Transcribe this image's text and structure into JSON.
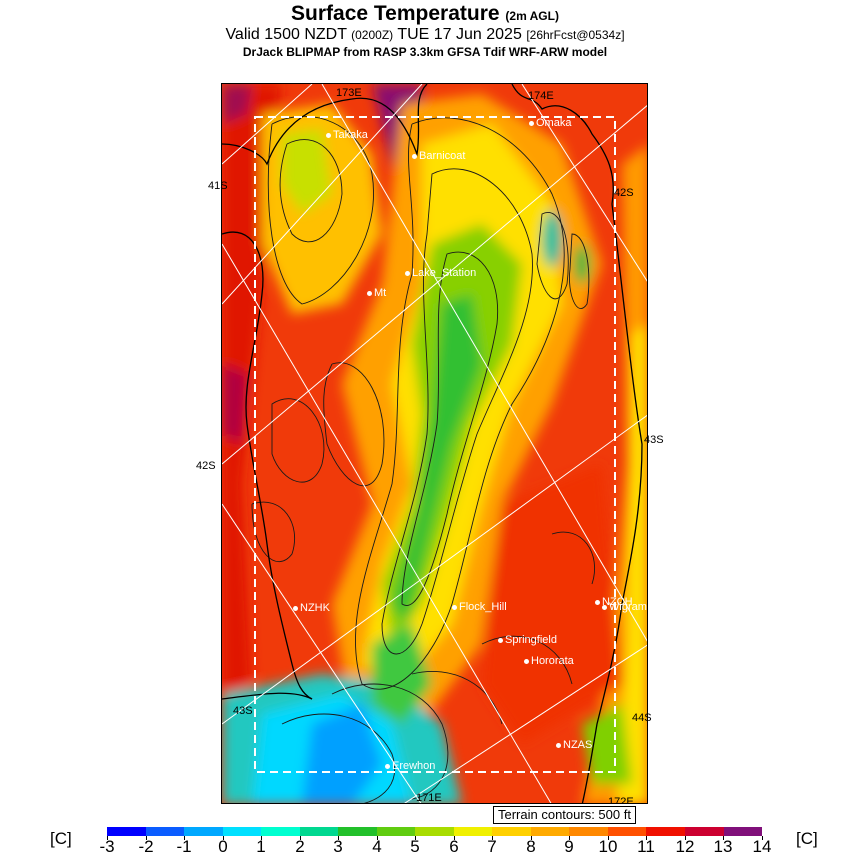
{
  "header": {
    "title": "Surface Temperature",
    "title_unit": "(2m AGL)",
    "valid_prefix": "Valid 1500 NZDT",
    "valid_zulu": "(0200Z)",
    "valid_date": "TUE 17 Jun 2025",
    "forecast": "[26hrFcst@0534z]",
    "model": "DrJack BLIPMAP from RASP 3.3km GFSA Tdif WRF-ARW model"
  },
  "map": {
    "lon_labels": [
      "173E",
      "174E",
      "171E",
      "172E"
    ],
    "lat_labels": [
      "41S",
      "42S",
      "42S",
      "43S",
      "43S",
      "44S"
    ],
    "towns": [
      "Takaka",
      "Barnicoat",
      "Omaka",
      "Lake_Station",
      "Mt",
      "NZHK",
      "Flock_Hill",
      "NZCH",
      "Wigram",
      "Springfield",
      "Hororata",
      "NZAS",
      "Erewhon"
    ],
    "terrain_note": "Terrain contours: 500 ft"
  },
  "legend": {
    "unit_left": "[C]",
    "unit_right": "[C]",
    "ticks": [
      "-3",
      "-2",
      "-1",
      "0",
      "1",
      "2",
      "3",
      "4",
      "5",
      "6",
      "7",
      "8",
      "9",
      "10",
      "11",
      "12",
      "13",
      "14"
    ],
    "colors": [
      "#0000ff",
      "#0a5cff",
      "#00a8ff",
      "#00e0ff",
      "#00ffd0",
      "#00d890",
      "#22c02a",
      "#60cc10",
      "#a8dc00",
      "#f0f000",
      "#ffd000",
      "#ffaa00",
      "#ff8800",
      "#ff5000",
      "#f01000",
      "#cc0030",
      "#80107a"
    ]
  }
}
